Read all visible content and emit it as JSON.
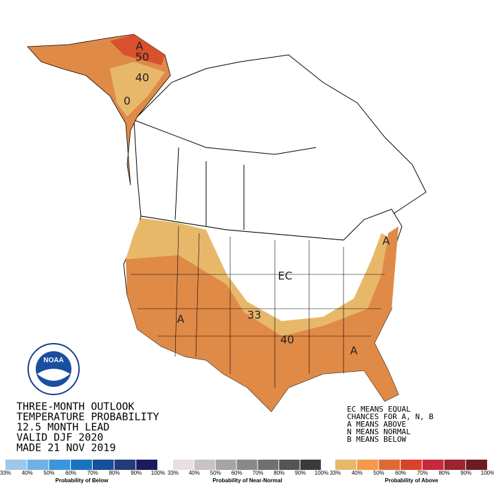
{
  "map_labels": [
    "A",
    "50",
    "40",
    "0",
    "EC",
    "33",
    "40",
    "A",
    "A",
    "A"
  ],
  "title_lines": [
    "THREE-MONTH OUTLOOK",
    "TEMPERATURE PROBABILITY",
    "12.5 MONTH LEAD",
    "VALID DJF 2020",
    "MADE 21 NOV 2019"
  ],
  "key_lines": [
    "EC MEANS EQUAL",
    "CHANCES FOR A, N, B",
    "A MEANS ABOVE",
    "N MEANS NORMAL",
    "B MEANS BELOW"
  ],
  "legends": [
    {
      "caption": "Probability of Below",
      "ticks": [
        "33%",
        "40%",
        "50%",
        "60%",
        "70%",
        "80%",
        "90%",
        "100%"
      ],
      "colors": [
        "#9ec8ea",
        "#6fb1e4",
        "#3a96dc",
        "#1a73bf",
        "#16509a",
        "#243a7a",
        "#1d1a5c"
      ]
    },
    {
      "caption": "Probability of Near-Normal",
      "ticks": [
        "33%",
        "40%",
        "50%",
        "60%",
        "70%",
        "80%",
        "90%",
        "100%"
      ],
      "colors": [
        "#e8dfe0",
        "#c8c2c3",
        "#a8a3a4",
        "#8c8889",
        "#707070",
        "#555555",
        "#3a3a3a"
      ]
    },
    {
      "caption": "Probability of Above",
      "ticks": [
        "33%",
        "40%",
        "50%",
        "60%",
        "70%",
        "80%",
        "90%",
        "100%"
      ],
      "colors": [
        "#e8b86a",
        "#f59a4c",
        "#e06a36",
        "#d8442a",
        "#c8283c",
        "#9a2430",
        "#6e1c24"
      ]
    }
  ]
}
